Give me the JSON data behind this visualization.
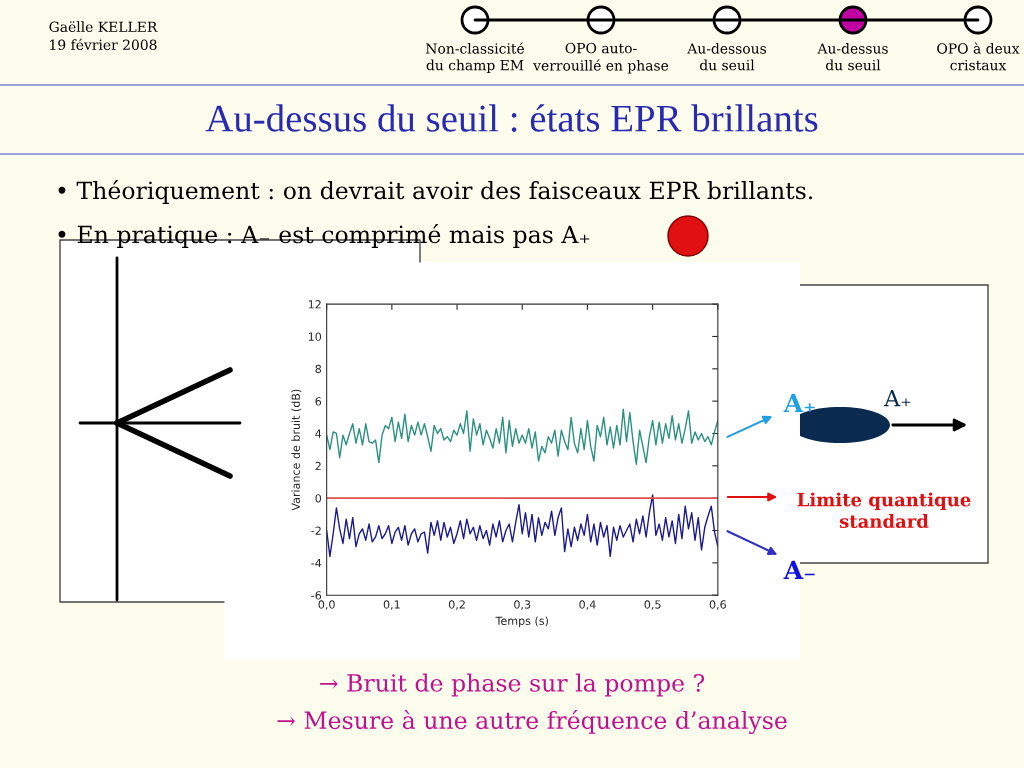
{
  "chart_data": {
    "type": "line",
    "title": "Au-dessus du seuil : états EPR brillants",
    "xlabel": "Temps (s)",
    "ylabel": "Variance de bruit (dB)",
    "x": [
      0,
      0.005,
      0.01,
      0.015,
      0.02,
      0.025,
      0.03,
      0.035,
      0.04,
      0.045,
      0.05,
      0.055,
      0.06,
      0.065,
      0.07,
      0.075,
      0.08,
      0.085,
      0.09,
      0.095,
      0.1,
      0.105,
      0.11,
      0.115,
      0.12,
      0.125,
      0.13,
      0.135,
      0.14,
      0.145,
      0.15,
      0.155,
      0.16,
      0.165,
      0.17,
      0.175,
      0.18,
      0.185,
      0.19,
      0.195,
      0.2,
      0.205,
      0.21,
      0.215,
      0.22,
      0.225,
      0.23,
      0.235,
      0.24,
      0.245,
      0.25,
      0.255,
      0.26,
      0.265,
      0.27,
      0.275,
      0.28,
      0.285,
      0.29,
      0.295,
      0.3,
      0.305,
      0.31,
      0.315,
      0.32,
      0.325,
      0.33,
      0.335,
      0.34,
      0.345,
      0.35,
      0.355,
      0.36,
      0.365,
      0.37,
      0.375,
      0.38,
      0.385,
      0.39,
      0.395,
      0.4,
      0.405,
      0.41,
      0.415,
      0.42,
      0.425,
      0.43,
      0.435,
      0.44,
      0.445,
      0.45,
      0.455,
      0.46,
      0.465,
      0.47,
      0.475,
      0.48,
      0.485,
      0.49,
      0.495,
      0.5,
      0.505,
      0.51,
      0.515,
      0.52,
      0.525,
      0.53,
      0.535,
      0.54,
      0.545,
      0.55,
      0.555,
      0.56,
      0.565,
      0.57,
      0.575,
      0.58,
      0.585,
      0.59,
      0.595,
      0.6
    ],
    "series": [
      {
        "color": "#2a9080",
        "values": [
          3.9,
          3.0,
          4.1,
          4.0,
          2.5,
          3.9,
          3.3,
          4.0,
          4.6,
          3.4,
          4.3,
          3.3,
          4.6,
          3.5,
          3.4,
          3.6,
          2.2,
          3.9,
          4.5,
          4.3,
          5.0,
          3.5,
          4.7,
          3.7,
          5.2,
          3.5,
          4.5,
          3.9,
          4.7,
          3.9,
          4.6,
          3.8,
          2.9,
          4.5,
          4.0,
          4.3,
          3.6,
          3.8,
          3.5,
          4.2,
          3.9,
          4.6,
          4.0,
          5.4,
          2.9,
          4.9,
          3.9,
          4.6,
          3.3,
          4.2,
          3.7,
          3.1,
          4.3,
          3.4,
          5.0,
          2.8,
          4.8,
          3.2,
          4.3,
          3.4,
          3.9,
          3.4,
          4.3,
          3.1,
          4.1,
          2.3,
          3.2,
          2.8,
          3.8,
          3.4,
          4.2,
          2.6,
          4.2,
          3.5,
          3.0,
          5.0,
          3.4,
          2.8,
          4.3,
          3.0,
          4.8,
          3.2,
          2.3,
          4.5,
          3.8,
          5.0,
          3.3,
          4.4,
          3.1,
          4.5,
          3.3,
          5.5,
          3.5,
          5.3,
          3.5,
          2.1,
          4.2,
          3.2,
          2.2,
          3.8,
          4.8,
          3.3,
          4.7,
          3.4,
          4.6,
          3.7,
          5.1,
          3.6,
          4.6,
          3.4,
          4.3,
          5.4,
          3.4,
          4.1,
          3.6,
          4.0,
          3.5,
          3.8,
          3.3,
          4.1,
          4.8
        ]
      },
      {
        "color": "#1a1a8c",
        "values": [
          -2.0,
          -3.6,
          -2.2,
          -0.6,
          -1.9,
          -2.8,
          -1.3,
          -2.5,
          -1.2,
          -3.0,
          -2.2,
          -1.9,
          -2.6,
          -1.6,
          -2.7,
          -2.4,
          -1.7,
          -2.5,
          -2.2,
          -1.7,
          -2.8,
          -2.1,
          -1.8,
          -2.6,
          -1.7,
          -2.9,
          -2.2,
          -1.9,
          -2.7,
          -2.2,
          -2.1,
          -3.4,
          -1.5,
          -2.3,
          -1.4,
          -2.6,
          -1.5,
          -2.4,
          -1.8,
          -2.8,
          -2.2,
          -1.4,
          -2.5,
          -1.3,
          -2.2,
          -1.8,
          -2.6,
          -1.7,
          -2.5,
          -2.0,
          -2.9,
          -1.6,
          -2.4,
          -1.4,
          -2.7,
          -2.0,
          -1.6,
          -2.7,
          -1.5,
          -0.4,
          -2.2,
          -0.9,
          -2.4,
          -1.0,
          -2.7,
          -1.2,
          -2.3,
          -1.5,
          -1.9,
          -0.8,
          -2.3,
          -1.2,
          -0.6,
          -3.3,
          -1.9,
          -3.0,
          -1.8,
          -2.6,
          -1.6,
          -2.3,
          -1.0,
          -2.7,
          -1.6,
          -2.9,
          -1.5,
          -2.4,
          -1.7,
          -3.6,
          -1.8,
          -2.6,
          -1.7,
          -2.4,
          -2.0,
          -1.6,
          -2.7,
          -1.3,
          -2.2,
          -1.1,
          -2.4,
          -0.9,
          0.2,
          -2.3,
          -1.6,
          -2.6,
          -1.2,
          -2.4,
          -1.4,
          -2.8,
          -1.0,
          -2.5,
          -0.5,
          -1.9,
          -0.9,
          -2.6,
          -1.2,
          -3.2,
          -1.8,
          -1.1,
          -0.5,
          -2.1,
          -3.0
        ]
      }
    ],
    "ref_lines": [
      {
        "axis": "y",
        "value": 0,
        "color": "#e05050"
      }
    ],
    "xlim": [
      0,
      0.6
    ],
    "xticks": [
      {
        "value": 0,
        "label": "0,0"
      },
      {
        "value": 0.1,
        "label": "0,1"
      },
      {
        "value": 0.2,
        "label": "0,2"
      },
      {
        "value": 0.3,
        "label": "0,3"
      },
      {
        "value": 0.4,
        "label": "0,4"
      },
      {
        "value": 0.5,
        "label": "0,5"
      },
      {
        "value": 0.6,
        "label": "0,6"
      }
    ],
    "ylim": [
      -6,
      12
    ],
    "yticks": [
      -6,
      -4,
      -2,
      0,
      2,
      4,
      6,
      8,
      10,
      12
    ],
    "grid": false,
    "legend": false,
    "marker": "none",
    "line_style": "solid",
    "annotations": [
      "Gaëlle KELLER",
      "19 février 2008",
      "Non-classicité\ndu champ EM",
      "OPO auto-\nverrouillé en phase",
      "Au-dessous\ndu seuil",
      "Au-dessus\ndu seuil",
      "OPO à deux\ncristaux",
      "• Théoriquement : on devrait avoir des faisceaux EPR brillants.",
      "• En pratique : A₋ est comprimé mais pas A₊",
      "A₊",
      "A₊",
      "Limite quantique\nstandard",
      "A₋",
      "→ Bruit de phase sur la pompe ?",
      "→ Mesure à une autre fréquence d’analyse"
    ]
  }
}
